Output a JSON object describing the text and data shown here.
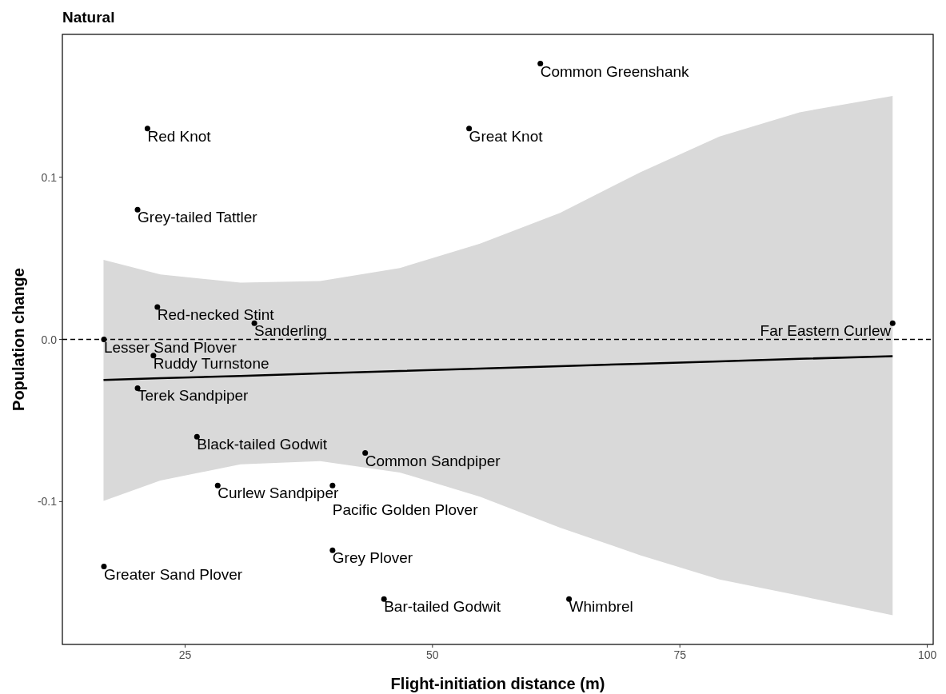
{
  "chart_data": {
    "type": "scatter",
    "title": "Natural",
    "xlabel": "Flight-initiation distance (m)",
    "ylabel": "Population change",
    "xlim": [
      12.6,
      100.6
    ],
    "ylim": [
      -0.188,
      0.188
    ],
    "xticks": [
      25,
      50,
      75,
      100
    ],
    "yticks": [
      {
        "value": -0.1,
        "label": "-0.1"
      },
      {
        "value": 0,
        "label": "0.0"
      },
      {
        "value": 0.1,
        "label": "0.1"
      }
    ],
    "grid": false,
    "series": [
      {
        "marker": "circle",
        "color": "#000000",
        "x": [
          60.9,
          21.2,
          53.7,
          20.2,
          22.2,
          32.0,
          96.5,
          16.8,
          21.8,
          20.2,
          26.2,
          43.2,
          28.3,
          39.9,
          39.9,
          16.8,
          45.1,
          63.8
        ],
        "values": [
          0.17,
          0.13,
          0.13,
          0.08,
          0.02,
          0.01,
          0.01,
          0,
          -0.01,
          -0.03,
          -0.06,
          -0.07,
          -0.09,
          -0.09,
          -0.13,
          -0.14,
          -0.16,
          -0.16
        ]
      },
      {
        "type": "line",
        "marker": "none",
        "line_style": "solid",
        "color": "#000000",
        "x": [
          16.76,
          22.5,
          30.6,
          38.65,
          46.7,
          54.8,
          62.9,
          71,
          79,
          87.1,
          96.5
        ],
        "values": [
          -0.025,
          -0.0239,
          -0.0225,
          -0.021,
          -0.0195,
          -0.018,
          -0.0165,
          -0.015,
          -0.0135,
          -0.012,
          -0.0103
        ],
        "lower": [
          -0.0995,
          -0.087,
          -0.077,
          -0.075,
          -0.082,
          -0.097,
          -0.116,
          -0.133,
          -0.148,
          -0.158,
          -0.17
        ],
        "upper": [
          0.049,
          0.04,
          0.035,
          0.036,
          0.044,
          0.059,
          0.078,
          0.103,
          0.125,
          0.14,
          0.15
        ]
      }
    ],
    "ref_lines": [
      {
        "axis": "y",
        "value": 0,
        "line_style": "dashed",
        "color": "#000000"
      }
    ],
    "annotations": [
      {
        "text": "Common Greenshank",
        "x": 60.9,
        "y": 0.17
      },
      {
        "text": "Red Knot",
        "x": 21.2,
        "y": 0.13
      },
      {
        "text": "Great Knot",
        "x": 53.7,
        "y": 0.13
      },
      {
        "text": "Grey-tailed Tattler",
        "x": 20.2,
        "y": 0.08
      },
      {
        "text": "Red-necked Stint",
        "x": 22.2,
        "y": 0.02
      },
      {
        "text": "Sanderling",
        "x": 32.0,
        "y": 0.01
      },
      {
        "text": "Far Eastern Curlew",
        "x": 96.5,
        "y": 0.01
      },
      {
        "text": "Lesser Sand Plover",
        "x": 16.8,
        "y": 0
      },
      {
        "text": "Ruddy Turnstone",
        "x": 21.8,
        "y": -0.01
      },
      {
        "text": "Terek Sandpiper",
        "x": 20.2,
        "y": -0.03
      },
      {
        "text": "Black-tailed Godwit",
        "x": 26.2,
        "y": -0.06
      },
      {
        "text": "Common Sandpiper",
        "x": 43.2,
        "y": -0.07
      },
      {
        "text": "Curlew Sandpiper",
        "x": 28.3,
        "y": -0.09
      },
      {
        "text": "Pacific Golden Plover",
        "x": 39.9,
        "y": -0.09
      },
      {
        "text": "Grey Plover",
        "x": 39.9,
        "y": -0.13
      },
      {
        "text": "Greater Sand Plover",
        "x": 16.8,
        "y": -0.14
      },
      {
        "text": "Bar-tailed Godwit",
        "x": 45.1,
        "y": -0.16
      },
      {
        "text": "Whimbrel",
        "x": 63.8,
        "y": -0.16
      }
    ]
  }
}
